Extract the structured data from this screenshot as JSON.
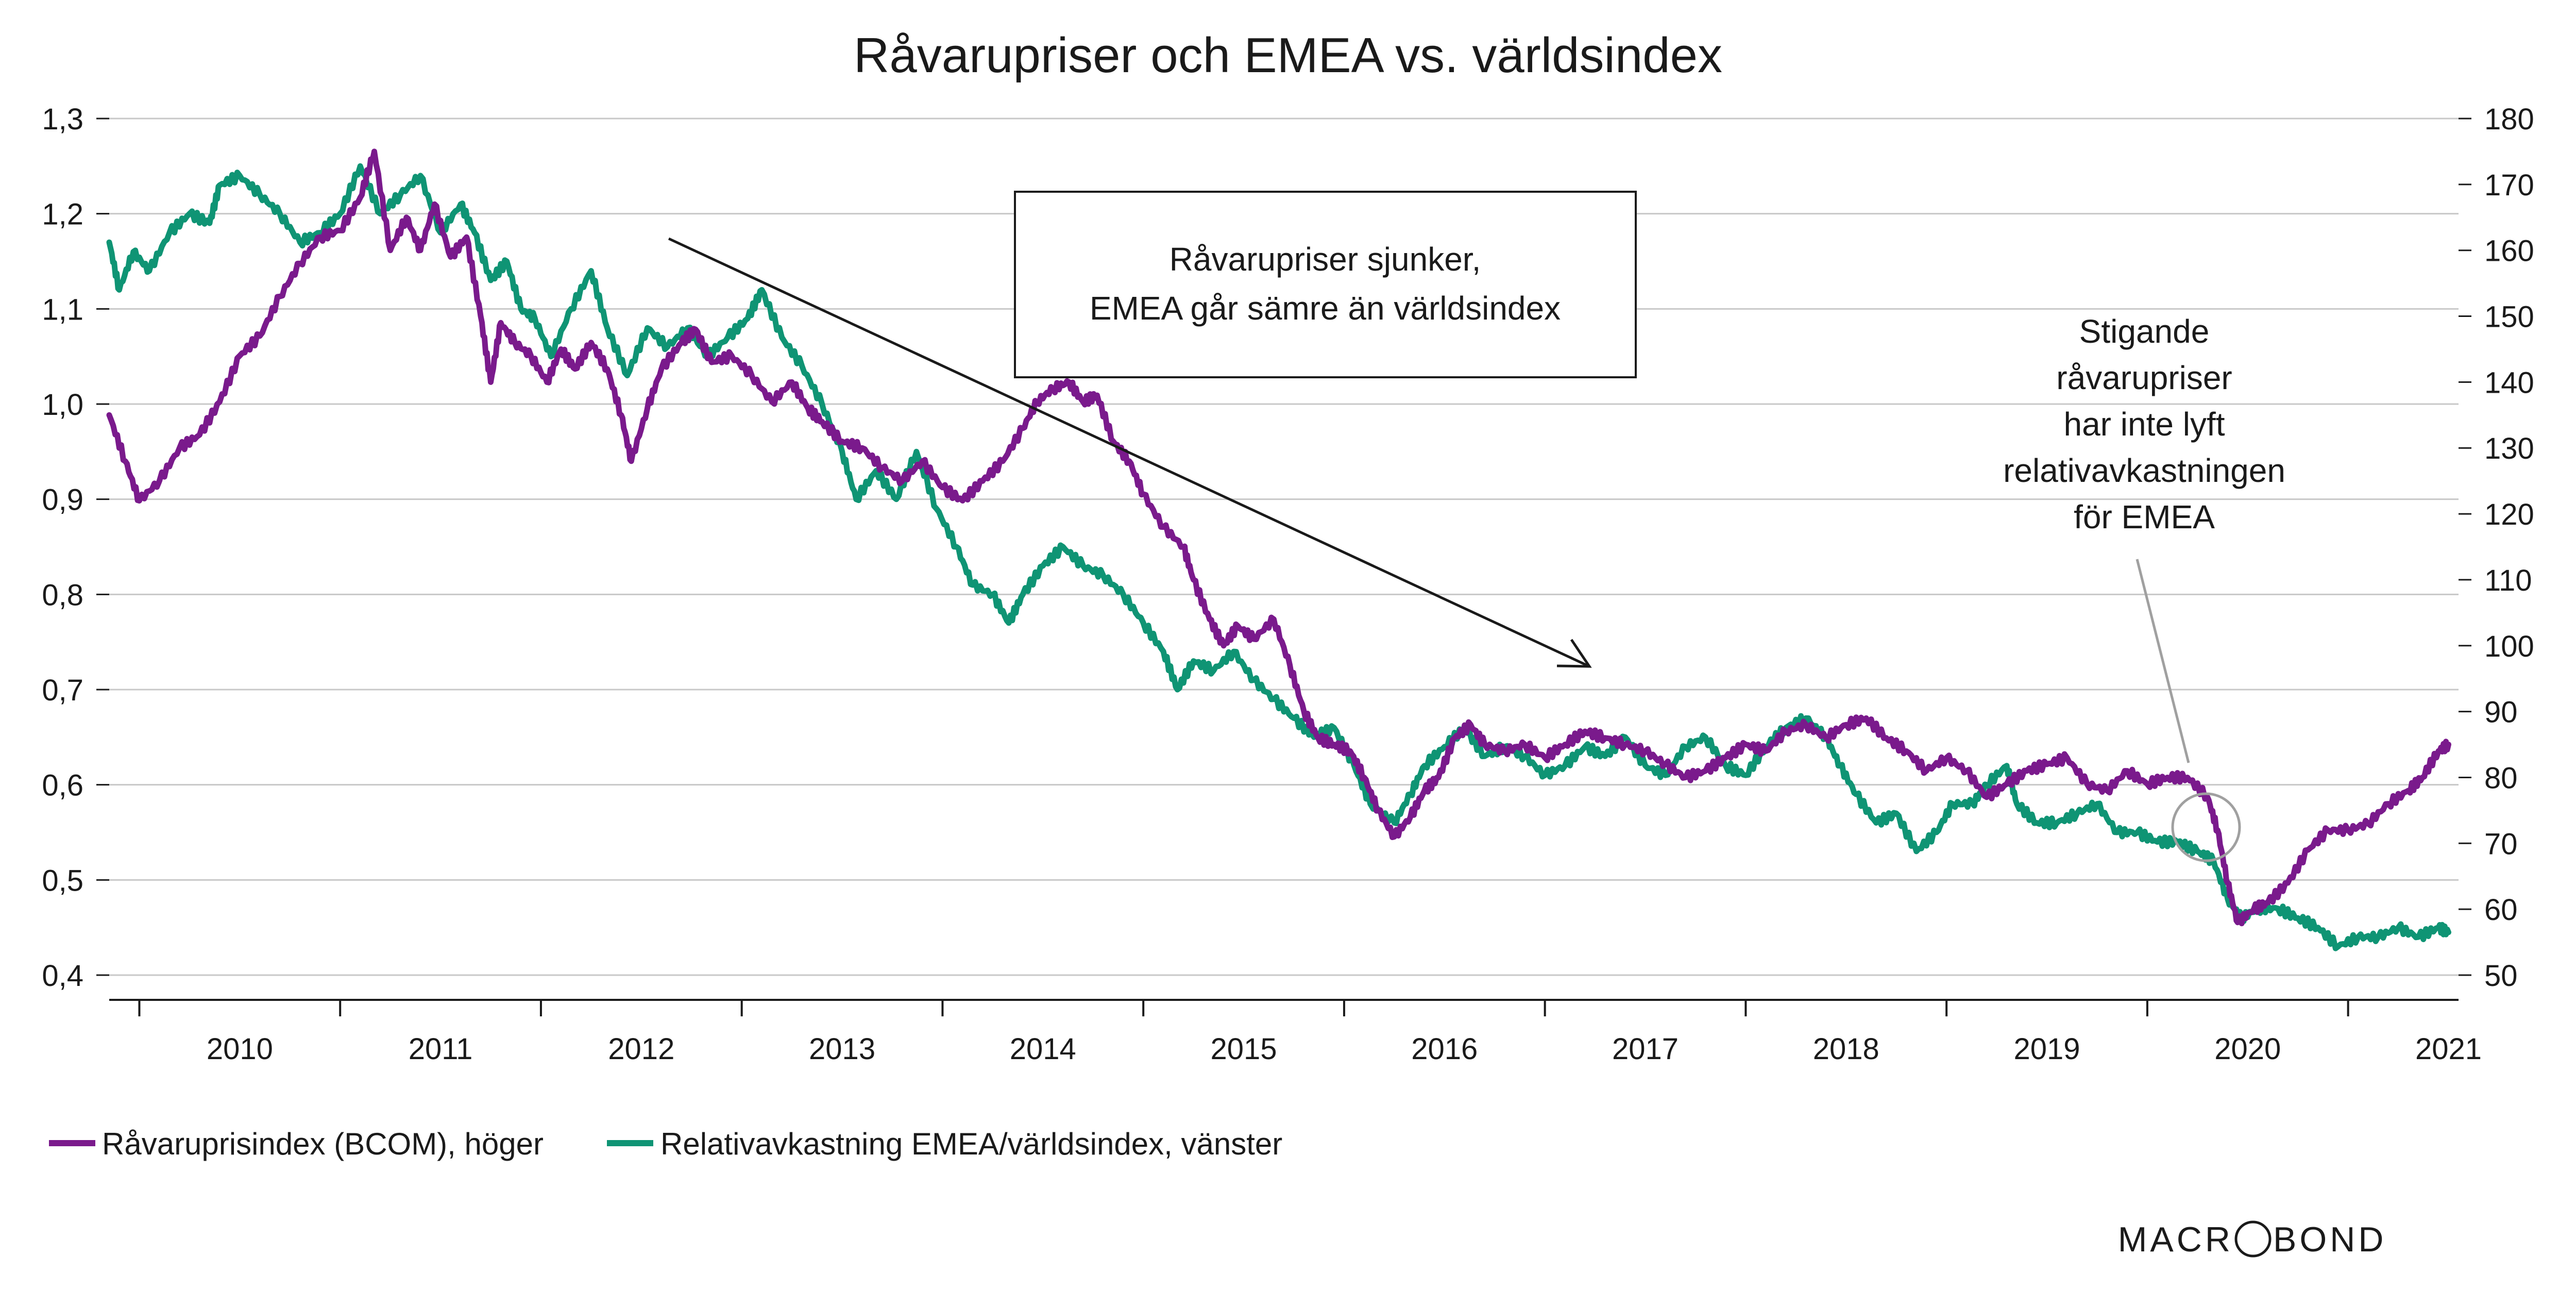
{
  "chart_data": {
    "type": "line",
    "title": "Råvarupriser och EMEA vs. världsindex",
    "x_ticks": [
      "2010",
      "2011",
      "2012",
      "2013",
      "2014",
      "2015",
      "2016",
      "2017",
      "2018",
      "2019",
      "2020",
      "2021"
    ],
    "xlim": [
      2009.6,
      2021.3
    ],
    "y_left": {
      "ticks": [
        "1,3",
        "1,2",
        "1,1",
        "1,0",
        "0,9",
        "0,8",
        "0,7",
        "0,6",
        "0,5",
        "0,4"
      ],
      "ylim": [
        0.4,
        1.3
      ]
    },
    "y_right": {
      "ticks": [
        "180",
        "170",
        "160",
        "150",
        "140",
        "130",
        "120",
        "110",
        "100",
        "90",
        "80",
        "70",
        "60",
        "50"
      ],
      "ylim": [
        50,
        180
      ]
    },
    "grid": true,
    "legend_position": "bottom-left",
    "series": [
      {
        "name": "Råvaruprisindex (BCOM), höger",
        "axis": "right",
        "color": "#7a1a8c",
        "points": [
          [
            2009.6,
            135
          ],
          [
            2009.68,
            128
          ],
          [
            2009.75,
            122
          ],
          [
            2009.85,
            125
          ],
          [
            2009.95,
            130
          ],
          [
            2010.05,
            132
          ],
          [
            2010.15,
            137
          ],
          [
            2010.25,
            144
          ],
          [
            2010.35,
            147
          ],
          [
            2010.45,
            153
          ],
          [
            2010.55,
            158
          ],
          [
            2010.65,
            162
          ],
          [
            2010.75,
            163
          ],
          [
            2010.85,
            168
          ],
          [
            2010.92,
            175
          ],
          [
            2011.0,
            160
          ],
          [
            2011.08,
            165
          ],
          [
            2011.15,
            160
          ],
          [
            2011.22,
            167
          ],
          [
            2011.3,
            159
          ],
          [
            2011.38,
            162
          ],
          [
            2011.45,
            150
          ],
          [
            2011.5,
            140
          ],
          [
            2011.55,
            149
          ],
          [
            2011.62,
            146
          ],
          [
            2011.7,
            144
          ],
          [
            2011.78,
            140
          ],
          [
            2011.85,
            145
          ],
          [
            2011.92,
            142
          ],
          [
            2012.0,
            146
          ],
          [
            2012.08,
            142
          ],
          [
            2012.15,
            135
          ],
          [
            2012.2,
            128
          ],
          [
            2012.28,
            136
          ],
          [
            2012.35,
            142
          ],
          [
            2012.45,
            146
          ],
          [
            2012.52,
            148
          ],
          [
            2012.6,
            143
          ],
          [
            2012.7,
            144
          ],
          [
            2012.8,
            141
          ],
          [
            2012.9,
            137
          ],
          [
            2013.0,
            140
          ],
          [
            2013.08,
            136
          ],
          [
            2013.15,
            134
          ],
          [
            2013.25,
            131
          ],
          [
            2013.35,
            130
          ],
          [
            2013.45,
            127
          ],
          [
            2013.55,
            125
          ],
          [
            2013.65,
            128
          ],
          [
            2013.75,
            124
          ],
          [
            2013.85,
            122
          ],
          [
            2013.95,
            125
          ],
          [
            2014.05,
            128
          ],
          [
            2014.15,
            133
          ],
          [
            2014.22,
            137
          ],
          [
            2014.3,
            139
          ],
          [
            2014.38,
            140
          ],
          [
            2014.45,
            137
          ],
          [
            2014.52,
            138
          ],
          [
            2014.6,
            131
          ],
          [
            2014.68,
            128
          ],
          [
            2014.75,
            123
          ],
          [
            2014.85,
            118
          ],
          [
            2014.95,
            115
          ],
          [
            2015.0,
            110
          ],
          [
            2015.08,
            104
          ],
          [
            2015.15,
            100
          ],
          [
            2015.22,
            103
          ],
          [
            2015.3,
            101
          ],
          [
            2015.4,
            104
          ],
          [
            2015.48,
            97
          ],
          [
            2015.55,
            90
          ],
          [
            2015.62,
            86
          ],
          [
            2015.7,
            85
          ],
          [
            2015.78,
            84
          ],
          [
            2015.85,
            80
          ],
          [
            2015.92,
            75
          ],
          [
            2016.0,
            71
          ],
          [
            2016.08,
            74
          ],
          [
            2016.15,
            78
          ],
          [
            2016.22,
            80
          ],
          [
            2016.3,
            86
          ],
          [
            2016.38,
            88
          ],
          [
            2016.45,
            85
          ],
          [
            2016.55,
            84
          ],
          [
            2016.65,
            85
          ],
          [
            2016.75,
            83
          ],
          [
            2016.85,
            85
          ],
          [
            2016.95,
            87
          ],
          [
            2017.05,
            86
          ],
          [
            2017.15,
            85
          ],
          [
            2017.25,
            84
          ],
          [
            2017.35,
            82
          ],
          [
            2017.45,
            80
          ],
          [
            2017.55,
            81
          ],
          [
            2017.65,
            83
          ],
          [
            2017.75,
            85
          ],
          [
            2017.85,
            84
          ],
          [
            2017.95,
            87
          ],
          [
            2018.05,
            88
          ],
          [
            2018.15,
            86
          ],
          [
            2018.25,
            88
          ],
          [
            2018.35,
            89
          ],
          [
            2018.45,
            86
          ],
          [
            2018.55,
            84
          ],
          [
            2018.65,
            81
          ],
          [
            2018.75,
            83
          ],
          [
            2018.85,
            81
          ],
          [
            2018.95,
            77
          ],
          [
            2019.05,
            79
          ],
          [
            2019.15,
            81
          ],
          [
            2019.25,
            82
          ],
          [
            2019.35,
            83
          ],
          [
            2019.45,
            79
          ],
          [
            2019.55,
            78
          ],
          [
            2019.65,
            81
          ],
          [
            2019.75,
            79
          ],
          [
            2019.85,
            80
          ],
          [
            2019.95,
            80
          ],
          [
            2020.05,
            77
          ],
          [
            2020.1,
            72
          ],
          [
            2020.15,
            64
          ],
          [
            2020.2,
            58
          ],
          [
            2020.28,
            60
          ],
          [
            2020.35,
            61
          ],
          [
            2020.45,
            64
          ],
          [
            2020.55,
            69
          ],
          [
            2020.65,
            72
          ],
          [
            2020.75,
            72
          ],
          [
            2020.85,
            73
          ],
          [
            2020.95,
            76
          ],
          [
            2021.05,
            78
          ],
          [
            2021.12,
            80
          ],
          [
            2021.2,
            84
          ],
          [
            2021.25,
            85
          ]
        ]
      },
      {
        "name": "Relativavkastning EMEA/världsindex, vänster",
        "axis": "left",
        "color": "#0f9474",
        "points": [
          [
            2009.6,
            1.17
          ],
          [
            2009.65,
            1.12
          ],
          [
            2009.72,
            1.16
          ],
          [
            2009.8,
            1.14
          ],
          [
            2009.9,
            1.18
          ],
          [
            2010.0,
            1.2
          ],
          [
            2010.1,
            1.19
          ],
          [
            2010.15,
            1.23
          ],
          [
            2010.25,
            1.24
          ],
          [
            2010.35,
            1.22
          ],
          [
            2010.45,
            1.2
          ],
          [
            2010.55,
            1.17
          ],
          [
            2010.65,
            1.18
          ],
          [
            2010.75,
            1.2
          ],
          [
            2010.85,
            1.25
          ],
          [
            2010.95,
            1.2
          ],
          [
            2011.05,
            1.22
          ],
          [
            2011.15,
            1.24
          ],
          [
            2011.25,
            1.18
          ],
          [
            2011.35,
            1.21
          ],
          [
            2011.42,
            1.18
          ],
          [
            2011.5,
            1.13
          ],
          [
            2011.58,
            1.15
          ],
          [
            2011.65,
            1.1
          ],
          [
            2011.72,
            1.09
          ],
          [
            2011.8,
            1.05
          ],
          [
            2011.9,
            1.1
          ],
          [
            2012.0,
            1.14
          ],
          [
            2012.08,
            1.08
          ],
          [
            2012.18,
            1.03
          ],
          [
            2012.28,
            1.08
          ],
          [
            2012.38,
            1.06
          ],
          [
            2012.48,
            1.08
          ],
          [
            2012.58,
            1.05
          ],
          [
            2012.68,
            1.07
          ],
          [
            2012.78,
            1.09
          ],
          [
            2012.85,
            1.12
          ],
          [
            2012.95,
            1.07
          ],
          [
            2013.05,
            1.04
          ],
          [
            2013.15,
            1.0
          ],
          [
            2013.25,
            0.95
          ],
          [
            2013.32,
            0.9
          ],
          [
            2013.42,
            0.93
          ],
          [
            2013.52,
            0.9
          ],
          [
            2013.62,
            0.95
          ],
          [
            2013.72,
            0.89
          ],
          [
            2013.82,
            0.85
          ],
          [
            2013.9,
            0.81
          ],
          [
            2014.0,
            0.8
          ],
          [
            2014.08,
            0.77
          ],
          [
            2014.15,
            0.8
          ],
          [
            2014.25,
            0.83
          ],
          [
            2014.35,
            0.85
          ],
          [
            2014.45,
            0.83
          ],
          [
            2014.55,
            0.82
          ],
          [
            2014.65,
            0.8
          ],
          [
            2014.75,
            0.77
          ],
          [
            2014.85,
            0.74
          ],
          [
            2014.92,
            0.7
          ],
          [
            2015.0,
            0.73
          ],
          [
            2015.1,
            0.72
          ],
          [
            2015.2,
            0.74
          ],
          [
            2015.3,
            0.71
          ],
          [
            2015.4,
            0.69
          ],
          [
            2015.5,
            0.67
          ],
          [
            2015.6,
            0.65
          ],
          [
            2015.7,
            0.66
          ],
          [
            2015.8,
            0.62
          ],
          [
            2015.88,
            0.58
          ],
          [
            2016.0,
            0.56
          ],
          [
            2016.08,
            0.59
          ],
          [
            2016.15,
            0.62
          ],
          [
            2016.25,
            0.64
          ],
          [
            2016.35,
            0.66
          ],
          [
            2016.45,
            0.63
          ],
          [
            2016.55,
            0.64
          ],
          [
            2016.65,
            0.63
          ],
          [
            2016.75,
            0.61
          ],
          [
            2016.85,
            0.62
          ],
          [
            2016.95,
            0.64
          ],
          [
            2017.05,
            0.63
          ],
          [
            2017.15,
            0.65
          ],
          [
            2017.25,
            0.62
          ],
          [
            2017.35,
            0.61
          ],
          [
            2017.45,
            0.64
          ],
          [
            2017.55,
            0.65
          ],
          [
            2017.65,
            0.62
          ],
          [
            2017.75,
            0.61
          ],
          [
            2017.85,
            0.64
          ],
          [
            2017.95,
            0.66
          ],
          [
            2018.05,
            0.67
          ],
          [
            2018.15,
            0.65
          ],
          [
            2018.22,
            0.62
          ],
          [
            2018.3,
            0.59
          ],
          [
            2018.4,
            0.56
          ],
          [
            2018.5,
            0.57
          ],
          [
            2018.6,
            0.53
          ],
          [
            2018.7,
            0.55
          ],
          [
            2018.78,
            0.58
          ],
          [
            2018.88,
            0.58
          ],
          [
            2018.95,
            0.6
          ],
          [
            2019.05,
            0.62
          ],
          [
            2019.1,
            0.58
          ],
          [
            2019.2,
            0.56
          ],
          [
            2019.3,
            0.56
          ],
          [
            2019.4,
            0.57
          ],
          [
            2019.5,
            0.58
          ],
          [
            2019.6,
            0.55
          ],
          [
            2019.7,
            0.55
          ],
          [
            2019.8,
            0.54
          ],
          [
            2019.9,
            0.54
          ],
          [
            2020.0,
            0.53
          ],
          [
            2020.08,
            0.52
          ],
          [
            2020.15,
            0.48
          ],
          [
            2020.22,
            0.46
          ],
          [
            2020.3,
            0.47
          ],
          [
            2020.4,
            0.47
          ],
          [
            2020.5,
            0.46
          ],
          [
            2020.6,
            0.45
          ],
          [
            2020.7,
            0.43
          ],
          [
            2020.8,
            0.44
          ],
          [
            2020.9,
            0.44
          ],
          [
            2021.0,
            0.45
          ],
          [
            2021.1,
            0.44
          ],
          [
            2021.2,
            0.45
          ],
          [
            2021.25,
            0.445
          ]
        ]
      }
    ],
    "annotations": [
      {
        "id": "box",
        "lines": [
          "Råvarupriser sjunker,",
          "EMEA går sämre än världsindex"
        ]
      },
      {
        "id": "callout",
        "lines": [
          "Stigande",
          "råvarupriser",
          "har inte lyft",
          "relativavkastningen",
          "för EMEA"
        ]
      }
    ]
  },
  "branding": {
    "logo_text": "MACROBOND"
  }
}
